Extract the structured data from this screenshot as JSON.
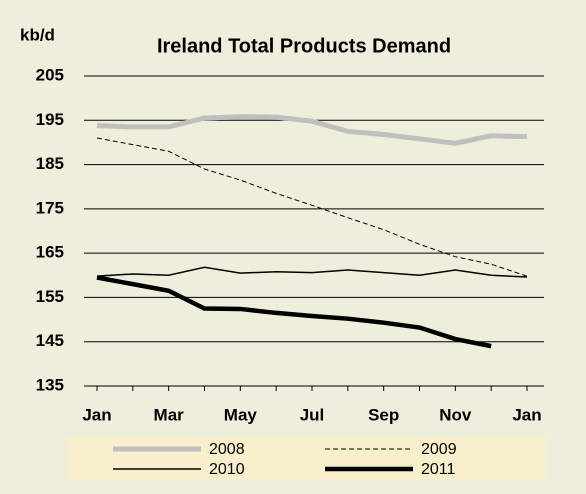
{
  "chart_data": {
    "type": "line",
    "title": "Ireland Total Products Demand",
    "y_label": "kb/d",
    "categories": [
      "Jan",
      null,
      "Mar",
      null,
      "May",
      null,
      "Jul",
      null,
      "Sep",
      null,
      "Nov",
      null,
      "Jan"
    ],
    "series": [
      {
        "name": "2008",
        "color": "#bfbfbf",
        "linewidth": 5,
        "dash": false,
        "values": [
          193.8,
          193.5,
          193.5,
          195.5,
          195.8,
          195.7,
          194.8,
          192.5,
          191.8,
          190.8,
          189.8,
          191.5,
          191.3
        ]
      },
      {
        "name": "2009",
        "color": "#000000",
        "linewidth": 1,
        "dash": true,
        "values": [
          191,
          189.5,
          188,
          184,
          181.5,
          178.5,
          175.8,
          173,
          170.3,
          167,
          164.2,
          162.5,
          159.8
        ]
      },
      {
        "name": "2010",
        "color": "#000000",
        "linewidth": 1.5,
        "dash": false,
        "values": [
          159.8,
          160.3,
          160,
          161.8,
          160.5,
          160.8,
          160.6,
          161.2,
          160.6,
          160,
          161.2,
          160,
          159.6
        ]
      },
      {
        "name": "2011",
        "color": "#000000",
        "linewidth": 4.5,
        "dash": false,
        "values": [
          159.5,
          158,
          156.5,
          152.5,
          152.4,
          151.5,
          150.8,
          150.2,
          149.3,
          148.2,
          145.6,
          144,
          null
        ]
      }
    ],
    "ylim": [
      135,
      205
    ],
    "yticks": [
      135,
      145,
      155,
      165,
      175,
      185,
      195,
      205
    ],
    "grid": true
  }
}
